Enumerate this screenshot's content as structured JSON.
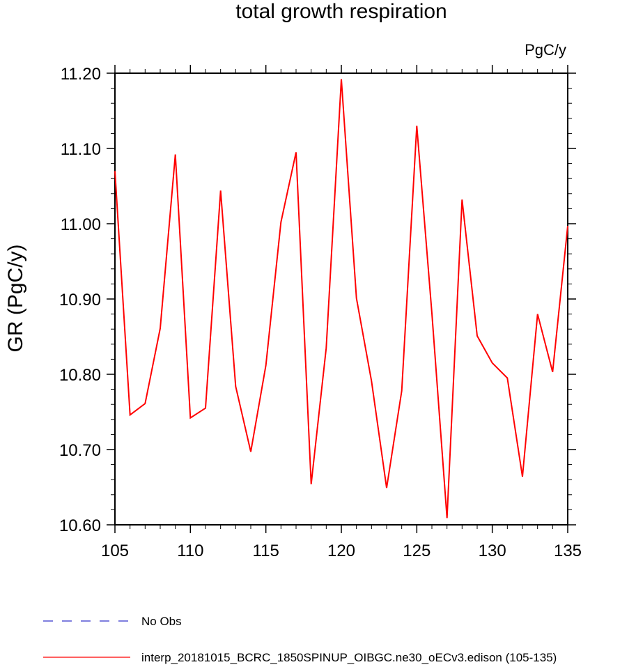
{
  "chart_data": {
    "type": "line",
    "title": "total growth respiration",
    "units": "PgC/y",
    "xlabel": "",
    "ylabel": "GR  (PgC/y)",
    "xlim": [
      105,
      135
    ],
    "ylim": [
      10.6,
      11.2
    ],
    "x_ticks": [
      105,
      110,
      115,
      120,
      125,
      130,
      135
    ],
    "x_tick_labels": [
      "105",
      "110",
      "115",
      "120",
      "125",
      "130",
      "135"
    ],
    "y_ticks": [
      10.6,
      10.7,
      10.8,
      10.9,
      11.0,
      11.1,
      11.2
    ],
    "y_tick_labels": [
      "10.60",
      "10.70",
      "10.80",
      "10.90",
      "11.00",
      "11.10",
      "11.20"
    ],
    "x_minor_step": 1,
    "y_minor_step": 0.02,
    "grid": false,
    "legend_position": "bottom",
    "series": [
      {
        "name": "No Obs",
        "color": "#3333cc",
        "dash": "dashed",
        "x": [],
        "values": []
      },
      {
        "name": "interp_20181015_BCRC_1850SPINUP_OIBGC.ne30_oECv3.edison (105-135)",
        "color": "#ff0000",
        "dash": "solid",
        "x": [
          105,
          106,
          107,
          108,
          109,
          110,
          111,
          112,
          113,
          114,
          115,
          116,
          117,
          118,
          119,
          120,
          121,
          122,
          123,
          124,
          125,
          126,
          127,
          128,
          129,
          130,
          131,
          132,
          133,
          134,
          135
        ],
        "values": [
          11.07,
          10.746,
          10.761,
          10.861,
          11.092,
          10.742,
          10.755,
          11.044,
          10.784,
          10.697,
          10.812,
          11.002,
          11.095,
          10.654,
          10.835,
          11.192,
          10.901,
          10.791,
          10.649,
          10.778,
          11.13,
          10.881,
          10.609,
          11.032,
          10.851,
          10.815,
          10.795,
          10.664,
          10.88,
          10.803,
          10.997
        ]
      }
    ]
  }
}
